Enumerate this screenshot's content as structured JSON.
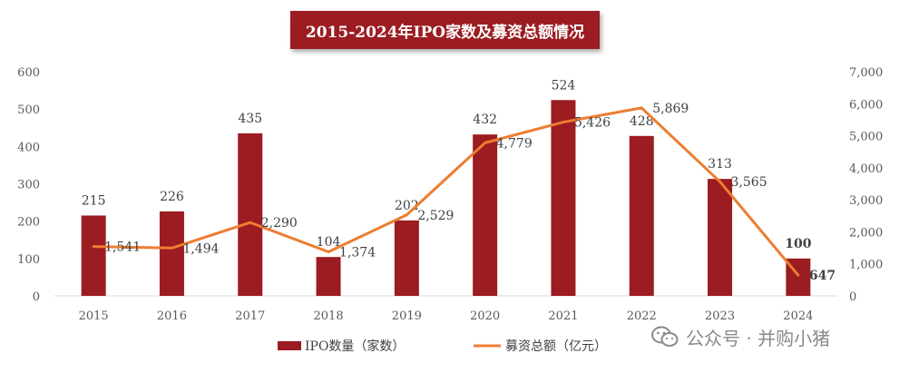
{
  "chart_data": {
    "type": "bar+line",
    "title": "2015-2024年IPO家数及募资总额情况",
    "categories": [
      "2015",
      "2016",
      "2017",
      "2018",
      "2019",
      "2020",
      "2021",
      "2022",
      "2023",
      "2024"
    ],
    "series": [
      {
        "name": "IPO数量（家数）",
        "type": "bar",
        "axis": "left",
        "values": [
          215,
          226,
          435,
          104,
          202,
          432,
          524,
          428,
          313,
          100
        ],
        "labels": [
          "215",
          "226",
          "435",
          "104",
          "202",
          "432",
          "524",
          "428",
          "313",
          "100"
        ],
        "color": "#9b1c21"
      },
      {
        "name": "募资总额（亿元）",
        "type": "line",
        "axis": "right",
        "values": [
          1541,
          1494,
          2290,
          1374,
          2529,
          4779,
          5426,
          5869,
          3565,
          647
        ],
        "labels": [
          "1,541",
          "1,494",
          "2,290",
          "1,374",
          "2,529",
          "4,779",
          "5,426",
          "5,869",
          "3,565",
          "647"
        ],
        "color": "#ed7d31"
      }
    ],
    "y_left": {
      "range": [
        0,
        600
      ],
      "ticks": [
        "0",
        "100",
        "200",
        "300",
        "400",
        "500",
        "600"
      ]
    },
    "y_right": {
      "range": [
        0,
        7000
      ],
      "ticks": [
        "0",
        "1,000",
        "2,000",
        "3,000",
        "4,000",
        "5,000",
        "6,000",
        "7,000"
      ]
    },
    "bold_last_labels": true,
    "legend_position": "bottom",
    "grid": false
  },
  "watermark": {
    "text": "公众号 · 并购小猪",
    "icon": "wechat-icon"
  }
}
